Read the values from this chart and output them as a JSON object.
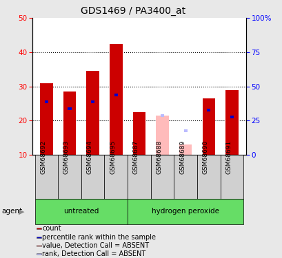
{
  "title": "GDS1469 / PA3400_at",
  "samples": [
    "GSM68692",
    "GSM68693",
    "GSM68694",
    "GSM68695",
    "GSM68687",
    "GSM68688",
    "GSM68689",
    "GSM68690",
    "GSM68691"
  ],
  "count_values": [
    31,
    28.5,
    34.5,
    42.5,
    22.5,
    null,
    null,
    26.5,
    29
  ],
  "rank_values": [
    25.5,
    23.5,
    25.5,
    27.5,
    null,
    null,
    null,
    23,
    21
  ],
  "absent_count_values": [
    null,
    null,
    null,
    null,
    null,
    21.5,
    13,
    null,
    null
  ],
  "absent_rank_values": [
    null,
    null,
    null,
    null,
    null,
    21.5,
    17,
    null,
    null
  ],
  "count_color": "#cc0000",
  "rank_color": "#0000cc",
  "absent_count_color": "#ffbbbb",
  "absent_rank_color": "#bbbbff",
  "ylim": [
    10,
    50
  ],
  "y2lim": [
    0,
    100
  ],
  "yticks": [
    10,
    20,
    30,
    40,
    50
  ],
  "y2ticks": [
    0,
    25,
    50,
    75,
    100
  ],
  "bg_color": "#e8e8e8",
  "plot_bg": "#ffffff",
  "sample_box_color": "#d0d0d0",
  "green_color": "#66dd66",
  "legend_items": [
    {
      "label": "count",
      "color": "#cc0000"
    },
    {
      "label": "percentile rank within the sample",
      "color": "#0000cc"
    },
    {
      "label": "value, Detection Call = ABSENT",
      "color": "#ffbbbb"
    },
    {
      "label": "rank, Detection Call = ABSENT",
      "color": "#bbbbff"
    }
  ],
  "groups_info": [
    {
      "label": "untreated",
      "start": 0,
      "end": 3
    },
    {
      "label": "hydrogen peroxide",
      "start": 4,
      "end": 8
    }
  ]
}
